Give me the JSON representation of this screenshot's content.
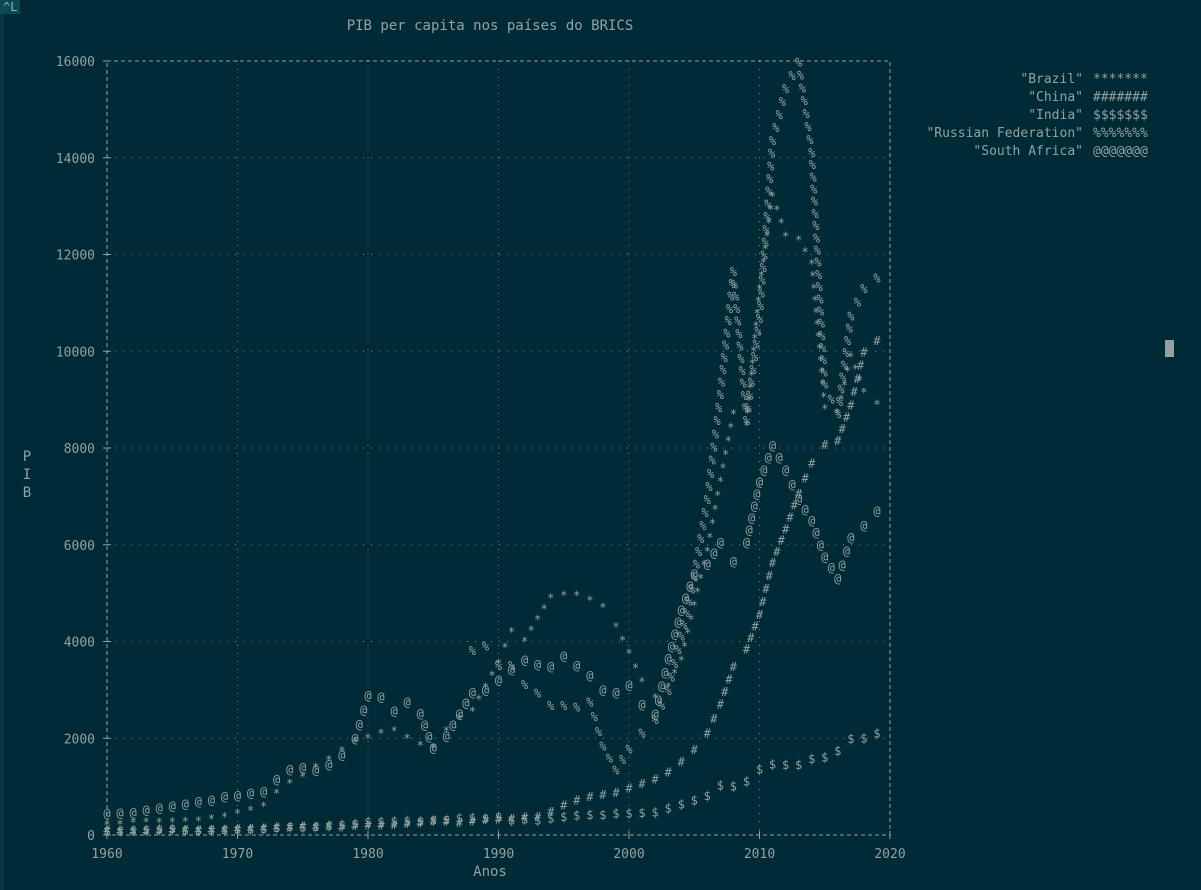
{
  "terminal": {
    "corner_tag": "^L"
  },
  "chart_data": {
    "type": "line",
    "title": "PIB per capita nos países do BRICS",
    "xlabel": "Anos",
    "ylabel": "PIB",
    "xlim": [
      1960,
      2020
    ],
    "ylim": [
      0,
      16000
    ],
    "xticks": [
      1960,
      1970,
      1980,
      1990,
      2000,
      2010,
      2020
    ],
    "yticks": [
      0,
      2000,
      4000,
      6000,
      8000,
      10000,
      12000,
      14000,
      16000
    ],
    "grid": true,
    "legend_position": "top-right",
    "x": [
      1960,
      1961,
      1962,
      1963,
      1964,
      1965,
      1966,
      1967,
      1968,
      1969,
      1970,
      1971,
      1972,
      1973,
      1974,
      1975,
      1976,
      1977,
      1978,
      1979,
      1980,
      1981,
      1982,
      1983,
      1984,
      1985,
      1986,
      1987,
      1988,
      1989,
      1990,
      1991,
      1992,
      1993,
      1994,
      1995,
      1996,
      1997,
      1998,
      1999,
      2000,
      2001,
      2002,
      2003,
      2004,
      2005,
      2006,
      2007,
      2008,
      2009,
      2010,
      2011,
      2012,
      2013,
      2014,
      2015,
      2016,
      2017,
      2018,
      2019
    ],
    "series": [
      {
        "name": "\"Brazil\"",
        "marker": "*******",
        "values": [
          210,
          215,
          255,
          265,
          262,
          264,
          280,
          290,
          330,
          370,
          445,
          510,
          590,
          860,
          1060,
          1200,
          1400,
          1550,
          1740,
          1920,
          2000,
          2100,
          2150,
          2000,
          1850,
          1800,
          2150,
          2400,
          2550,
          3050,
          3550,
          4200,
          4000,
          4450,
          4900,
          4950,
          4950,
          4850,
          4700,
          4300,
          3750,
          3160,
          2830,
          3060,
          3610,
          4740,
          5860,
          7310,
          8700,
          8470,
          11290,
          13200,
          12370,
          12300,
          11800,
          8810,
          8710,
          9880,
          9150,
          8900
        ]
      },
      {
        "name": "\"China\"",
        "marker": "#######",
        "values": [
          90,
          76,
          70,
          74,
          85,
          98,
          104,
          97,
          91,
          100,
          113,
          119,
          132,
          157,
          160,
          178,
          165,
          185,
          156,
          184,
          195,
          197,
          203,
          225,
          250,
          294,
          282,
          252,
          284,
          311,
          318,
          333,
          366,
          377,
          473,
          610,
          709,
          782,
          829,
          873,
          959,
          1053,
          1149,
          1289,
          1509,
          1753,
          2099,
          2693,
          3468,
          3832,
          4550,
          5618,
          6317,
          7051,
          7679,
          8067,
          8148,
          8879,
          9977,
          10217
        ]
      },
      {
        "name": "\"India\"",
        "marker": "$$$$$$$",
        "values": [
          82,
          85,
          90,
          101,
          116,
          119,
          90,
          96,
          99,
          107,
          112,
          118,
          122,
          143,
          163,
          158,
          161,
          186,
          206,
          224,
          267,
          271,
          274,
          291,
          277,
          296,
          310,
          340,
          354,
          346,
          368,
          303,
          317,
          301,
          346,
          374,
          400,
          415,
          413,
          441,
          443,
          451,
          470,
          546,
          627,
          714,
          806,
          1028,
          999,
          1102,
          1357,
          1458,
          1444,
          1450,
          1574,
          1606,
          1733,
          1981,
          1997,
          2100
        ]
      },
      {
        "name": "\"Russian Federation\"",
        "marker": "%%%%%%%",
        "values": [
          null,
          null,
          null,
          null,
          null,
          null,
          null,
          null,
          null,
          null,
          null,
          null,
          null,
          null,
          null,
          null,
          null,
          null,
          null,
          null,
          null,
          null,
          null,
          null,
          null,
          null,
          null,
          null,
          3800,
          3900,
          3490,
          3490,
          3100,
          2930,
          2670,
          2670,
          2640,
          2740,
          1830,
          1330,
          1770,
          2100,
          2380,
          2980,
          4100,
          5320,
          6920,
          9100,
          11640,
          8560,
          10670,
          14350,
          15420,
          15970,
          14100,
          9310,
          8700,
          10720,
          11290,
          11500
        ]
      },
      {
        "name": "\"South Africa\"",
        "marker": "@@@@@@@",
        "values": [
          440,
          450,
          470,
          520,
          560,
          600,
          640,
          690,
          720,
          800,
          820,
          870,
          900,
          1150,
          1350,
          1400,
          1340,
          1460,
          1650,
          1990,
          2880,
          2850,
          2560,
          2750,
          2510,
          1800,
          2050,
          2500,
          2950,
          3000,
          3200,
          3420,
          3620,
          3520,
          3480,
          3700,
          3500,
          3300,
          3000,
          2950,
          3100,
          2700,
          2500,
          3650,
          4650,
          5400,
          5600,
          6050,
          5650,
          6050,
          7300,
          8050,
          7550,
          6950,
          6500,
          5750,
          5300,
          6150,
          6400,
          6700
        ]
      }
    ]
  }
}
